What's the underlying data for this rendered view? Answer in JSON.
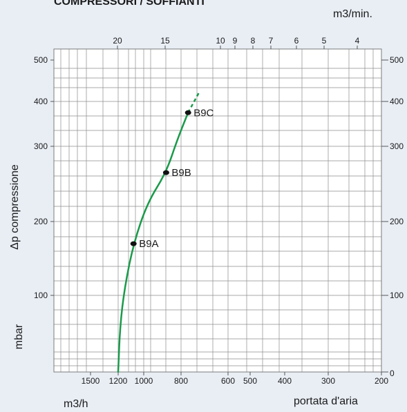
{
  "chart_data": {
    "type": "line",
    "title": "COMPRESSORI / SOFFIANTI",
    "unit_top": "m3/min.",
    "unit_left": "m3/h",
    "ylabel": "Δp compressione",
    "yunit": "mbar",
    "xlabel": "portata d'aria",
    "bottom_ticks": [
      {
        "label": "1500",
        "value": 1500
      },
      {
        "label": "1200",
        "value": 1200
      },
      {
        "label": "1000",
        "value": 1000
      },
      {
        "label": "800",
        "value": 800
      },
      {
        "label": "600",
        "value": 600
      },
      {
        "label": "500",
        "value": 500
      },
      {
        "label": "400",
        "value": 400
      },
      {
        "label": "300",
        "value": 300
      },
      {
        "label": "200",
        "value": 200
      }
    ],
    "top_ticks": [
      {
        "label": "20",
        "value": 20
      },
      {
        "label": "15",
        "value": 15
      },
      {
        "label": "10",
        "value": 10
      },
      {
        "label": "9",
        "value": 9
      },
      {
        "label": "8",
        "value": 8
      },
      {
        "label": "7",
        "value": 7
      },
      {
        "label": "6",
        "value": 6
      },
      {
        "label": "5",
        "value": 5
      },
      {
        "label": "4",
        "value": 4
      }
    ],
    "left_ticks": [
      {
        "label": "500",
        "value": 500
      },
      {
        "label": "400",
        "value": 400
      },
      {
        "label": "300",
        "value": 300
      },
      {
        "label": "200",
        "value": 200
      },
      {
        "label": "100",
        "value": 100
      }
    ],
    "right_ticks": [
      {
        "label": "500",
        "value": 500
      },
      {
        "label": "400",
        "value": 400
      },
      {
        "label": "300",
        "value": 300
      },
      {
        "label": "200",
        "value": 200
      },
      {
        "label": "100",
        "value": 100
      },
      {
        "label": "0",
        "value": 0
      }
    ],
    "series": [
      {
        "color": "#1a9a4a",
        "points": [
          {
            "x": 1200,
            "y": 0
          },
          {
            "x": 1185,
            "y": 60
          },
          {
            "x": 1150,
            "y": 110
          },
          {
            "x": 1080,
            "y": 170
          },
          {
            "x": 980,
            "y": 225
          },
          {
            "x": 880,
            "y": 265
          },
          {
            "x": 820,
            "y": 315
          },
          {
            "x": 770,
            "y": 375
          }
        ],
        "extension": [
          {
            "x": 770,
            "y": 375
          },
          {
            "x": 725,
            "y": 420
          }
        ]
      }
    ],
    "markers": [
      {
        "label": "B9A",
        "x": 1080,
        "y": 170
      },
      {
        "label": "B9B",
        "x": 880,
        "y": 265
      },
      {
        "label": "B9C",
        "x": 770,
        "y": 375
      }
    ]
  }
}
